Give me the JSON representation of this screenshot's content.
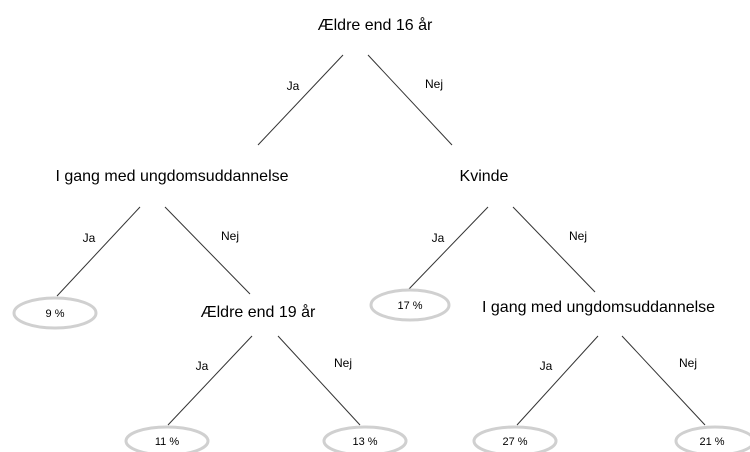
{
  "nodes": [
    {
      "label": "Ældre end 16 år"
    },
    {
      "label": "I gang med ungdomsuddannelse"
    },
    {
      "label": "Kvinde"
    },
    {
      "label": "Ældre end 19 år"
    },
    {
      "label": "I gang med ungdomsuddannelse"
    }
  ],
  "edges": [
    {
      "label": "Ja"
    },
    {
      "label": "Nej"
    },
    {
      "label": "Ja"
    },
    {
      "label": "Nej"
    },
    {
      "label": "Ja"
    },
    {
      "label": "Nej"
    },
    {
      "label": "Ja"
    },
    {
      "label": "Nej"
    },
    {
      "label": "Ja"
    },
    {
      "label": "Nej"
    }
  ],
  "leaves": [
    {
      "label": "9 %"
    },
    {
      "label": "17 %"
    },
    {
      "label": "11 %"
    },
    {
      "label": "13 %"
    },
    {
      "label": "27 %"
    },
    {
      "label": "21 %"
    }
  ]
}
